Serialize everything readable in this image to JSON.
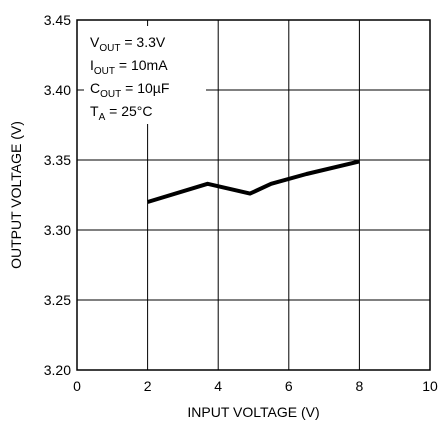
{
  "chart_data": {
    "type": "line",
    "title": "",
    "xlabel": "INPUT VOLTAGE (V)",
    "ylabel": "OUTPUT VOLTAGE (V)",
    "xlim": [
      0,
      10
    ],
    "ylim": [
      3.2,
      3.45
    ],
    "xticks": [
      "0",
      "2",
      "4",
      "6",
      "8",
      "10"
    ],
    "yticks": [
      "3.20",
      "3.25",
      "3.30",
      "3.35",
      "3.40",
      "3.45"
    ],
    "grid": true,
    "series": [
      {
        "name": "",
        "x": [
          2.0,
          3.7,
          4.9,
          5.5,
          6.5,
          8.0
        ],
        "y": [
          3.32,
          3.333,
          3.326,
          3.333,
          3.34,
          3.349
        ]
      }
    ],
    "annotations": [
      {
        "main": "V",
        "sub": "OUT",
        "rest": " = 3.3V"
      },
      {
        "main": "I",
        "sub": "OUT",
        "rest": " = 10mA"
      },
      {
        "main": "C",
        "sub": "OUT",
        "rest": " = 10µF"
      },
      {
        "main": "T",
        "sub": "A",
        "rest": " = 25°C"
      }
    ]
  }
}
